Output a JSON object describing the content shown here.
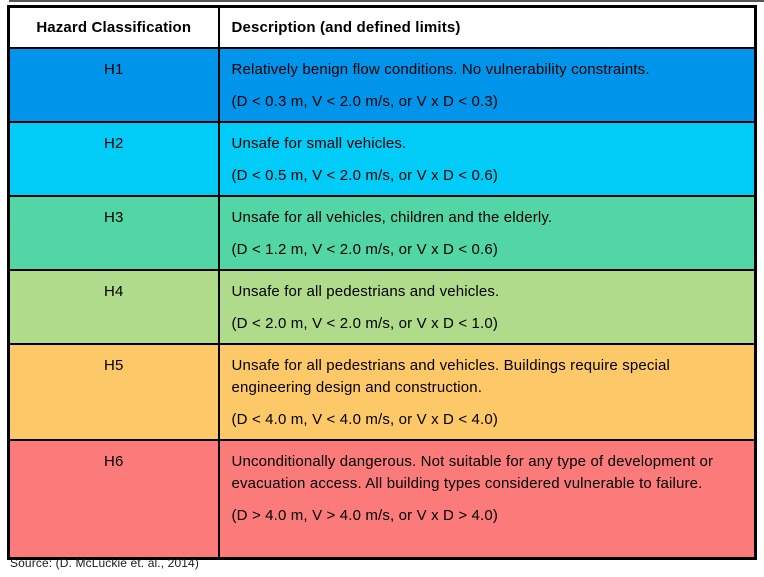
{
  "table": {
    "header": {
      "classification": "Hazard Classification",
      "description": "Description (and defined limits)"
    },
    "rows": [
      {
        "label": "H1",
        "color": "#0095EB",
        "description": "Relatively benign flow conditions. No vulnerability constraints.",
        "limits": "(D < 0.3 m, V < 2.0 m/s, or V x D < 0.3)"
      },
      {
        "label": "H2",
        "color": "#00CCF7",
        "description": "Unsafe for small vehicles.",
        "limits": "(D < 0.5 m, V < 2.0 m/s, or V x D < 0.6)"
      },
      {
        "label": "H3",
        "color": "#53D6A6",
        "description": "Unsafe for all vehicles, children and the elderly.",
        "limits": "(D < 1.2 m, V < 2.0 m/s, or V x D < 0.6)"
      },
      {
        "label": "H4",
        "color": "#AFDB8B",
        "description": "Unsafe for all pedestrians and vehicles.",
        "limits": "(D < 2.0 m, V < 2.0 m/s, or V x D < 1.0)"
      },
      {
        "label": "H5",
        "color": "#FDC968",
        "description": "Unsafe for all pedestrians and vehicles. Buildings require special engineering design and construction.",
        "limits": "(D < 4.0 m, V < 4.0 m/s, or V x D < 4.0)"
      },
      {
        "label": "H6",
        "color": "#FB7B7B",
        "description": "Unconditionally dangerous. Not suitable for any type of development or evacuation access. All building types considered vulnerable to failure.",
        "limits": "(D > 4.0 m, V > 4.0 m/s, or V x D > 4.0)"
      }
    ]
  },
  "footer": {
    "source": "Source: (D. McLuckie et. al., 2014)"
  },
  "colors": {
    "border": "#000000",
    "header_bg": "#FFFFFF",
    "text": "#000000"
  }
}
